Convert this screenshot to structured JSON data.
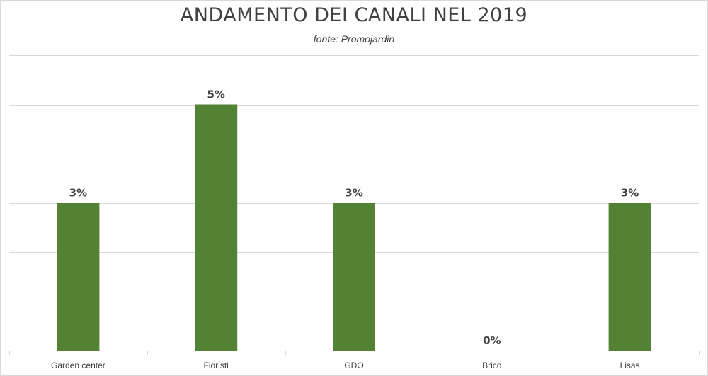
{
  "title": "ANDAMENTO DEI CANALI NEL 2019",
  "subtitle": "fonte: Promojardin",
  "colors": {
    "bar": "#548235",
    "grid": "#d9d9d9",
    "text": "#404040"
  },
  "chart_data": {
    "type": "bar",
    "title": "ANDAMENTO DEI CANALI NEL 2019",
    "subtitle": "fonte: Promojardin",
    "categories": [
      "Garden center",
      "Fioristi",
      "GDO",
      "Brico",
      "Lisas"
    ],
    "values": [
      3,
      5,
      3,
      0,
      3
    ],
    "data_labels": [
      "3%",
      "5%",
      "3%",
      "0%",
      "3%"
    ],
    "xlabel": "",
    "ylabel": "",
    "ylim": [
      0,
      6
    ],
    "grid": true,
    "legend": "none"
  }
}
